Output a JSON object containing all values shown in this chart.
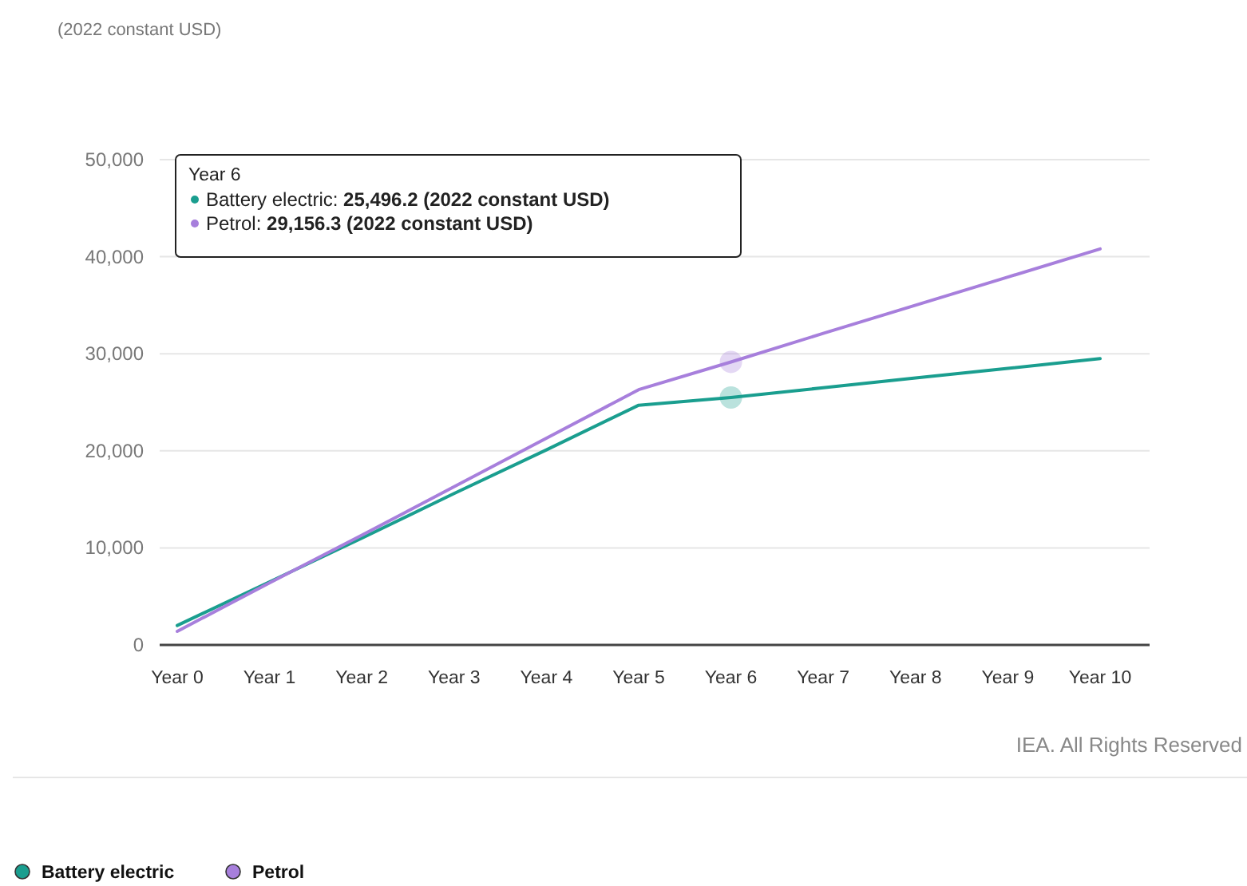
{
  "chart_data": {
    "type": "line",
    "categories": [
      "Year 0",
      "Year 1",
      "Year 2",
      "Year 3",
      "Year 4",
      "Year 5",
      "Year 6",
      "Year 7",
      "Year 8",
      "Year 9",
      "Year 10"
    ],
    "series": [
      {
        "name": "Battery electric",
        "color": "#1a9e8f",
        "values": [
          2000,
          6500,
          11000,
          15600,
          20100,
          24700,
          25496.2,
          26500,
          27500,
          28500,
          29500
        ]
      },
      {
        "name": "Petrol",
        "color": "#a77fdc",
        "values": [
          1400,
          6400,
          11300,
          16300,
          21300,
          26300,
          29156.3,
          32100,
          35000,
          37900,
          40800
        ]
      }
    ],
    "ylim": [
      0,
      50000
    ],
    "yticks": [
      {
        "value": 0,
        "label": "0"
      },
      {
        "value": 10000,
        "label": "10,000"
      },
      {
        "value": 20000,
        "label": "20,000"
      },
      {
        "value": 30000,
        "label": "30,000"
      },
      {
        "value": 40000,
        "label": "40,000"
      },
      {
        "value": 50000,
        "label": "50,000"
      }
    ],
    "grid": "y",
    "legend": "bottom left",
    "marker": "none",
    "line_style": "solid",
    "annotations": [
      "(2022 constant USD)",
      "Year 6",
      "Battery electric: 25,496.2 (2022 constant USD)",
      "Petrol: 29,156.3 (2022 constant USD)",
      "IEA. All Rights Reserved"
    ]
  }
}
